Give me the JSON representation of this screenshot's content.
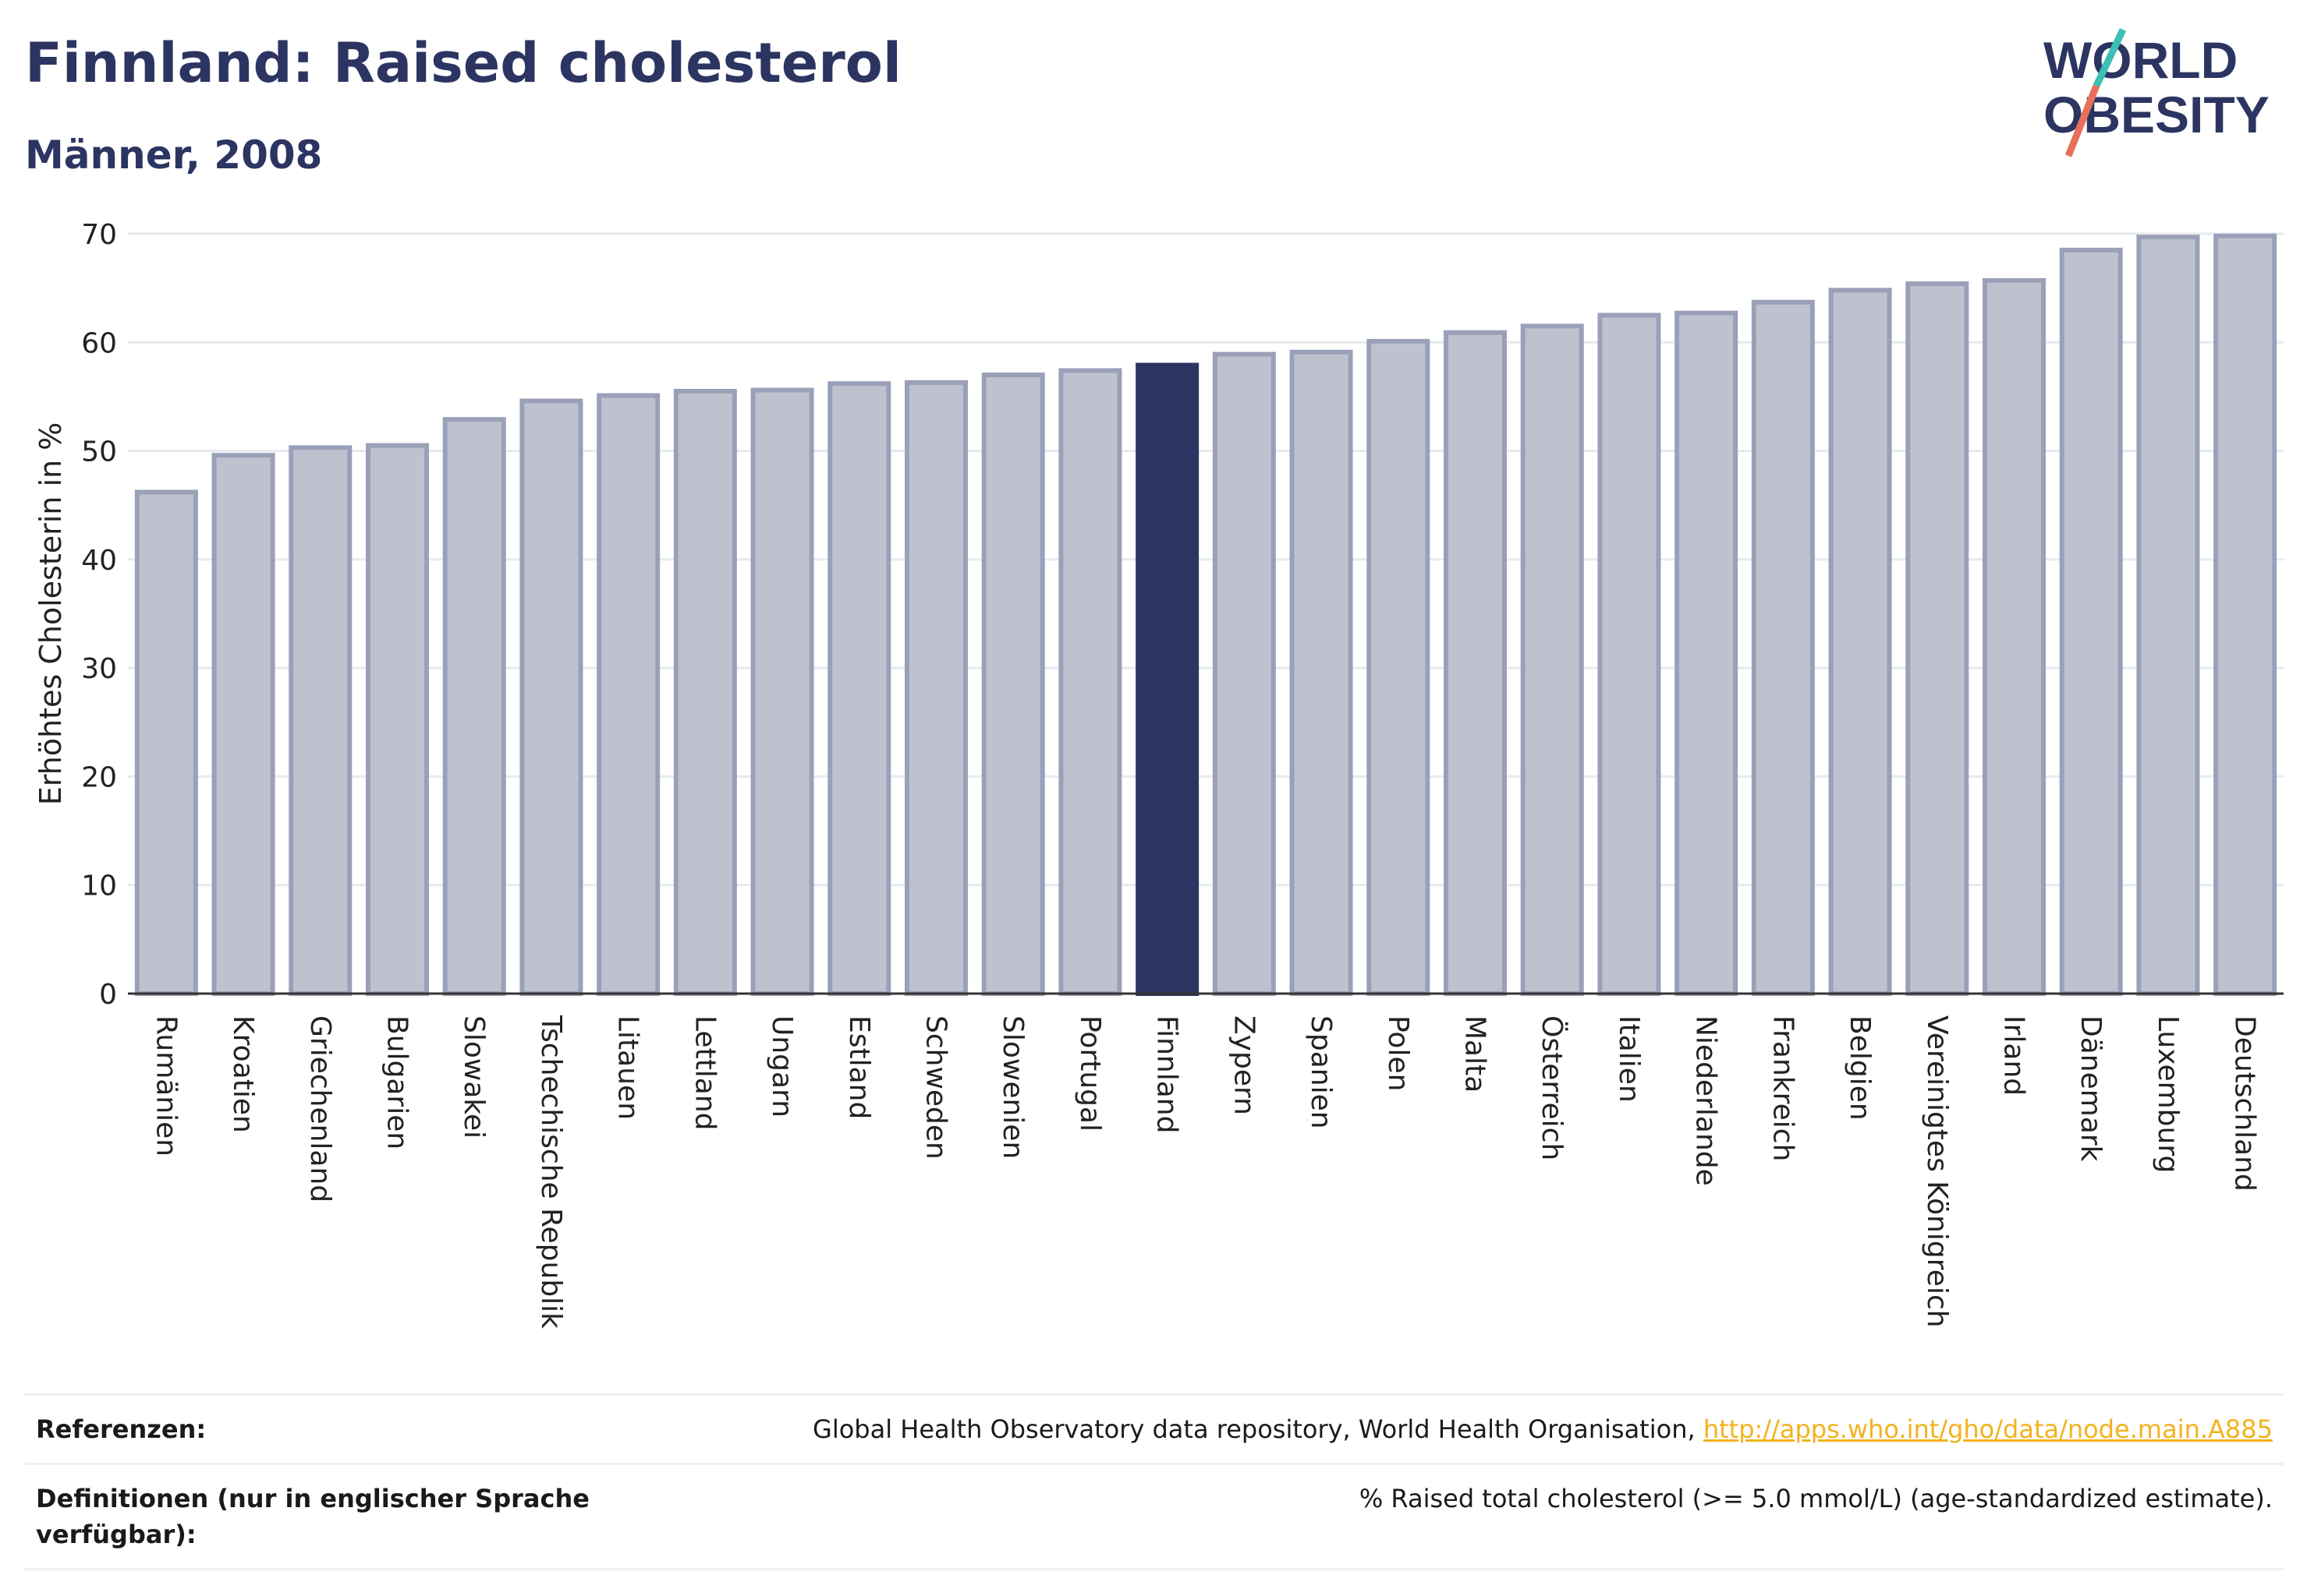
{
  "header": {
    "title": "Finnland: Raised cholesterol",
    "subtitle": "Männer, 2008"
  },
  "logo": {
    "line1": "WORLD",
    "line2": "OBESITY",
    "colors": {
      "text": "#2c3561",
      "slash_top": "#3cbfb4",
      "slash_bottom": "#e8705a"
    }
  },
  "chart_data": {
    "type": "bar",
    "ylabel": "Erhöhtes Cholesterin in %",
    "ylim": [
      0,
      70
    ],
    "yticks": [
      0,
      10,
      20,
      30,
      40,
      50,
      60,
      70
    ],
    "grid": true,
    "highlight": "Finnland",
    "colors": {
      "bar": "#bfc2ce",
      "bar_edge": "#9aa0b8",
      "highlight": "#2c3561",
      "grid": "#e8e9ee",
      "axis": "#333333"
    },
    "categories": [
      "Rumänien",
      "Kroatien",
      "Griechenland",
      "Bulgarien",
      "Slowakei",
      "Tschechische Republik",
      "Litauen",
      "Lettland",
      "Ungarn",
      "Estland",
      "Schweden",
      "Slowenien",
      "Portugal",
      "Finnland",
      "Zypern",
      "Spanien",
      "Polen",
      "Malta",
      "Österreich",
      "Italien",
      "Niederlande",
      "Frankreich",
      "Belgien",
      "Vereinigtes Königreich",
      "Irland",
      "Dänemark",
      "Luxemburg",
      "Deutschland"
    ],
    "values": [
      46.2,
      49.6,
      50.3,
      50.5,
      52.9,
      54.6,
      55.1,
      55.5,
      55.6,
      56.2,
      56.3,
      57.0,
      57.4,
      57.9,
      58.9,
      59.1,
      60.1,
      60.9,
      61.5,
      62.5,
      62.7,
      63.7,
      64.8,
      65.4,
      65.7,
      68.5,
      69.7,
      69.8
    ]
  },
  "references": {
    "label": "Referenzen:",
    "text": "Global Health Observatory data repository, World Health Organisation, ",
    "link": "http://apps.who.int/gho/data/node.main.A885"
  },
  "definitions": {
    "label": "Definitionen (nur in englischer Sprache verfügbar):",
    "text": "% Raised total cholesterol (>= 5.0 mmol/L) (age-standardized estimate)."
  }
}
